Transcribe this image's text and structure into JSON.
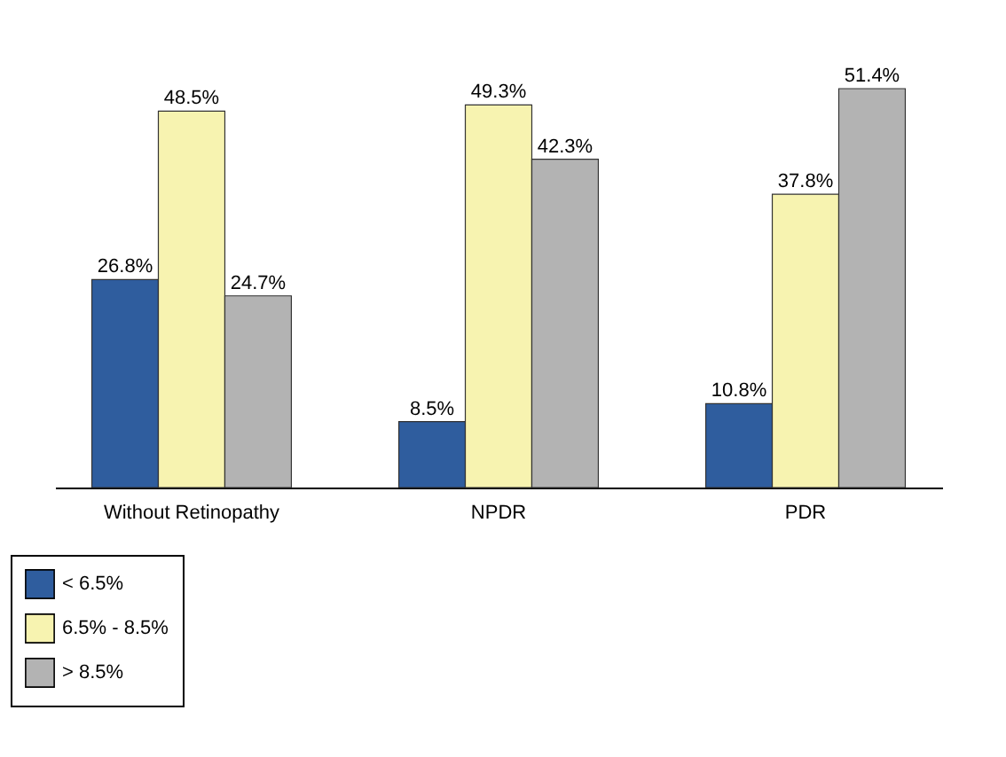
{
  "chart_data": {
    "type": "bar",
    "categories": [
      "Without Retinopathy",
      "NPDR",
      "PDR"
    ],
    "series": [
      {
        "name": "< 6.5%",
        "color": "#2f5d9e",
        "values": [
          26.8,
          8.5,
          10.8
        ],
        "value_labels": [
          "26.8%",
          "8.5%",
          "10.8%"
        ]
      },
      {
        "name": "6.5% - 8.5%",
        "color": "#f7f3b0",
        "values": [
          48.5,
          49.3,
          37.8
        ],
        "value_labels": [
          "48.5%",
          "49.3%",
          "37.8%"
        ]
      },
      {
        "name": "> 8.5%",
        "color": "#b3b3b3",
        "values": [
          24.7,
          42.3,
          51.4
        ],
        "value_labels": [
          "24.7%",
          "42.3%",
          "51.4%"
        ]
      }
    ],
    "legend": "bottom left",
    "grid": false
  }
}
